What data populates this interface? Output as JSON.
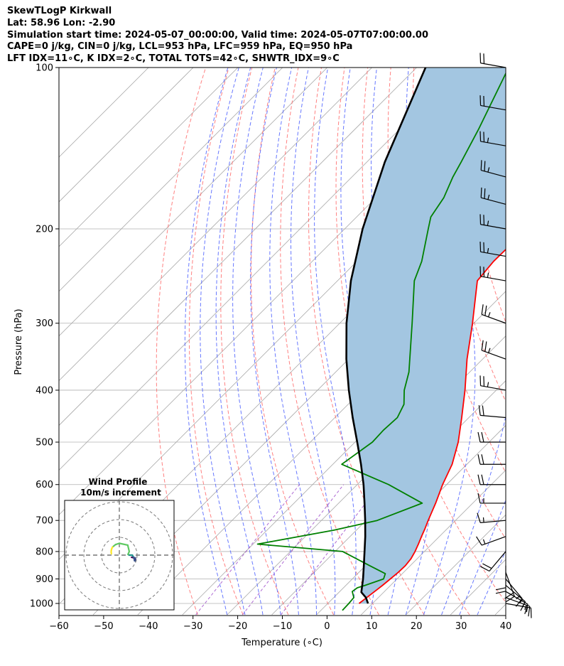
{
  "header": {
    "title": "SkewTLogP Kirkwall",
    "location": "Lat: 58.96   Lon: -2.90",
    "times": "Simulation start time: 2024-05-07_00:00:00, Valid time: 2024-05-07T07:00:00.00",
    "indices1": "CAPE=0 j/kg, CIN=0 j/kg, LCL=953 hPa, LFC=959 hPa, EQ=950 hPa",
    "indices2": "LFT IDX=11∘C, K IDX=2∘C, TOTAL TOTS=42∘C, SHWTR_IDX=9∘C"
  },
  "chart_data": {
    "type": "line",
    "xlabel": "Temperature (∘C)",
    "ylabel": "Pressure (hPa)",
    "xlim": [
      -60,
      40
    ],
    "ylim": [
      1050,
      100
    ],
    "y_scale": "log",
    "skew": true,
    "grid": true,
    "x_ticks": [
      -60,
      -50,
      -40,
      -30,
      -20,
      -10,
      0,
      10,
      20,
      30,
      40
    ],
    "x_tick_labels": [
      "−60",
      "−50",
      "−40",
      "−30",
      "−20",
      "−10",
      "0",
      "10",
      "20",
      "30",
      "40"
    ],
    "y_ticks": [
      1000,
      900,
      800,
      700,
      600,
      500,
      400,
      300,
      200,
      100
    ],
    "y_tick_labels": [
      "1000",
      "900",
      "800",
      "700",
      "600",
      "500",
      "400",
      "300",
      "200",
      "100"
    ],
    "colors": {
      "temperature": "#ff0000",
      "dewpoint": "#008000",
      "parcel": "#000000",
      "shade": "#a3c6e1",
      "dry_adiabat": "#ff6b6b",
      "moist_adiabat": "#4c60ff",
      "mixing_ratio": "#9a45c8",
      "isotherm": "#aaaaaa"
    },
    "series": [
      {
        "key": "temperature",
        "points": [
          [
            1000,
            7.0
          ],
          [
            975,
            7.4
          ],
          [
            950,
            7.8
          ],
          [
            925,
            8.2
          ],
          [
            900,
            8.5
          ],
          [
            875,
            8.8
          ],
          [
            850,
            8.9
          ],
          [
            825,
            8.6
          ],
          [
            800,
            7.9
          ],
          [
            775,
            7.0
          ],
          [
            750,
            6.0
          ],
          [
            725,
            5.0
          ],
          [
            700,
            3.9
          ],
          [
            650,
            1.7
          ],
          [
            600,
            -0.9
          ],
          [
            550,
            -3.3
          ],
          [
            500,
            -6.9
          ],
          [
            450,
            -11.6
          ],
          [
            400,
            -17.0
          ],
          [
            350,
            -23.5
          ],
          [
            300,
            -30.3
          ],
          [
            250,
            -38.7
          ],
          [
            230,
            -39.4
          ],
          [
            210,
            -39.3
          ],
          [
            200,
            -40.2
          ],
          [
            180,
            -43.7
          ],
          [
            160,
            -47.1
          ],
          [
            150,
            -48.5
          ],
          [
            140,
            -49.3
          ],
          [
            130,
            -50.9
          ],
          [
            120,
            -53.1
          ],
          [
            110,
            -55.8
          ],
          [
            100,
            -58.4
          ]
        ]
      },
      {
        "key": "dewpoint",
        "points": [
          [
            1030,
            4.8
          ],
          [
            1000,
            4.7
          ],
          [
            975,
            4.5
          ],
          [
            950,
            2.8
          ],
          [
            935,
            3.1
          ],
          [
            925,
            4.3
          ],
          [
            900,
            7.0
          ],
          [
            880,
            6.2
          ],
          [
            850,
            0.9
          ],
          [
            800,
            -8.3
          ],
          [
            775,
            -29.0
          ],
          [
            730,
            -15.0
          ],
          [
            700,
            -7.5
          ],
          [
            650,
            -1.3
          ],
          [
            600,
            -13.0
          ],
          [
            550,
            -28.0
          ],
          [
            500,
            -26.1
          ],
          [
            475,
            -26.3
          ],
          [
            450,
            -26.0
          ],
          [
            425,
            -27.5
          ],
          [
            400,
            -30.6
          ],
          [
            370,
            -33.6
          ],
          [
            300,
            -43.8
          ],
          [
            250,
            -52.8
          ],
          [
            230,
            -55.5
          ],
          [
            200,
            -61.3
          ],
          [
            190,
            -63.4
          ],
          [
            175,
            -64.8
          ],
          [
            160,
            -67.4
          ],
          [
            150,
            -68.9
          ],
          [
            130,
            -72.4
          ],
          [
            100,
            -79.4
          ]
        ]
      },
      {
        "key": "parcel",
        "points": [
          [
            1000,
            9.0
          ],
          [
            975,
            7.2
          ],
          [
            953,
            5.0
          ],
          [
            900,
            2.4
          ],
          [
            850,
            -0.4
          ],
          [
            800,
            -3.4
          ],
          [
            750,
            -6.6
          ],
          [
            700,
            -10.2
          ],
          [
            650,
            -14.2
          ],
          [
            600,
            -18.6
          ],
          [
            550,
            -23.7
          ],
          [
            500,
            -29.5
          ],
          [
            450,
            -36.0
          ],
          [
            400,
            -43.0
          ],
          [
            350,
            -50.5
          ],
          [
            300,
            -58.5
          ],
          [
            250,
            -67.0
          ],
          [
            200,
            -76.0
          ],
          [
            150,
            -86.0
          ],
          [
            100,
            -98.0
          ]
        ]
      }
    ],
    "wind_barbs": [
      [
        1000,
        100,
        13
      ],
      [
        975,
        110,
        14
      ],
      [
        950,
        120,
        15
      ],
      [
        925,
        130,
        16
      ],
      [
        900,
        140,
        17
      ],
      [
        875,
        160,
        18
      ],
      [
        850,
        180,
        19
      ],
      [
        800,
        220,
        21
      ],
      [
        750,
        250,
        17
      ],
      [
        700,
        265,
        14
      ],
      [
        650,
        270,
        16
      ],
      [
        600,
        270,
        18
      ],
      [
        550,
        270,
        20
      ],
      [
        500,
        270,
        21
      ],
      [
        450,
        275,
        22
      ],
      [
        400,
        280,
        24
      ],
      [
        350,
        290,
        26
      ],
      [
        300,
        290,
        27
      ],
      [
        250,
        280,
        26
      ],
      [
        225,
        280,
        25
      ],
      [
        200,
        280,
        26
      ],
      [
        180,
        285,
        27
      ],
      [
        160,
        285,
        26
      ],
      [
        140,
        280,
        23
      ],
      [
        120,
        280,
        21
      ],
      [
        100,
        280,
        20
      ]
    ],
    "inset": {
      "title": "Wind Profile",
      "subtitle": "10m/s increment",
      "ring_speeds": [
        10,
        20,
        30
      ]
    }
  }
}
